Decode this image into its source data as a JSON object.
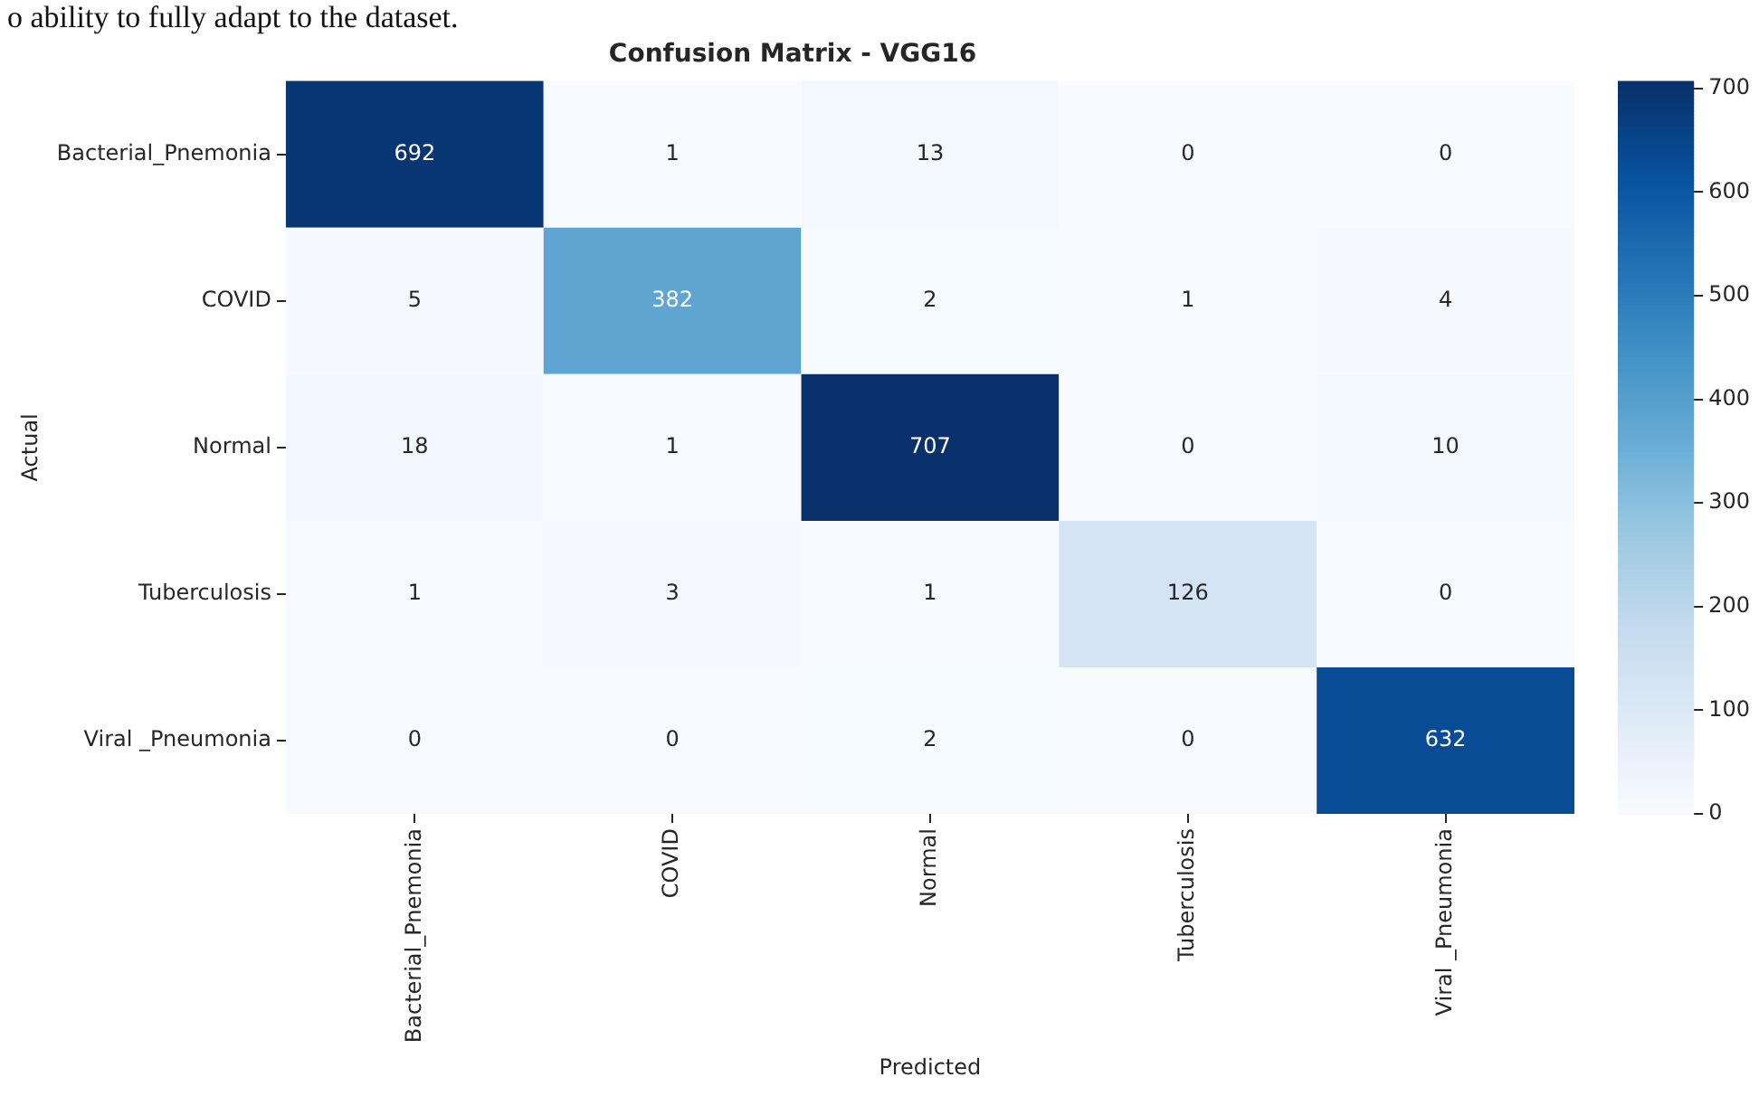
{
  "chart_data": {
    "type": "heatmap",
    "title": "Confusion Matrix - VGG16",
    "xlabel": "Predicted",
    "ylabel": "Actual",
    "annotations": [
      "o ability to fully adapt to the dataset."
    ],
    "categories": [
      "Bacterial_Pnemonia",
      "COVID",
      "Normal",
      "Tuberculosis",
      "Viral _Pneumonia"
    ],
    "y_categories": [
      "Bacterial_Pnemonia",
      "COVID",
      "Normal",
      "Tuberculosis",
      "Viral _Pneumonia"
    ],
    "cells": [
      [
        692,
        1,
        13,
        0,
        0
      ],
      [
        5,
        382,
        2,
        1,
        4
      ],
      [
        18,
        1,
        707,
        0,
        10
      ],
      [
        1,
        3,
        1,
        126,
        0
      ],
      [
        0,
        0,
        2,
        0,
        632
      ]
    ],
    "data_labels": true,
    "clim": [
      0,
      707
    ],
    "cticks": [
      0,
      100,
      200,
      300,
      400,
      500,
      600,
      700
    ]
  }
}
